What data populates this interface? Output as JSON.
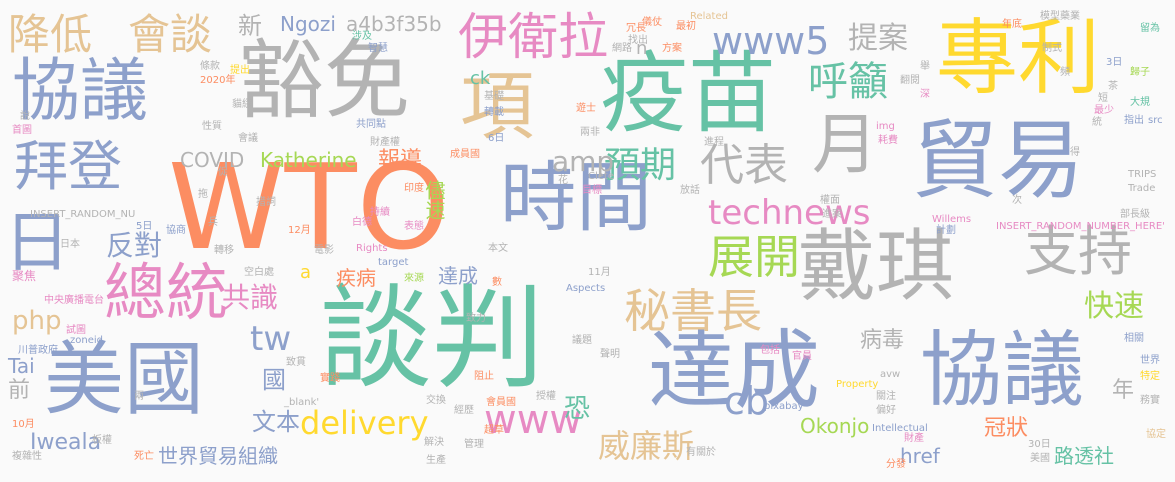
{
  "words": [
    {
      "text": "WTO",
      "color": "#fc8d62"
    },
    {
      "text": "談判",
      "color": "#66c2a5"
    },
    {
      "text": "疫苗",
      "color": "#66c2a5"
    },
    {
      "text": "豁免",
      "color": "#b3b3b3"
    },
    {
      "text": "專利",
      "color": "#ffd92f"
    },
    {
      "text": "貿易",
      "color": "#8da0cb"
    },
    {
      "text": "協議",
      "color": "#8da0cb"
    },
    {
      "text": "協議",
      "color": "#8da0cb"
    },
    {
      "text": "美國",
      "color": "#8da0cb"
    },
    {
      "text": "達成",
      "color": "#8da0cb"
    },
    {
      "text": "戴琪",
      "color": "#b3b3b3"
    },
    {
      "text": "時間",
      "color": "#8da0cb"
    },
    {
      "text": "總統",
      "color": "#e78ac3"
    },
    {
      "text": "拜登",
      "color": "#8da0cb"
    },
    {
      "text": "伊衛拉",
      "color": "#e78ac3"
    },
    {
      "text": "支持",
      "color": "#b3b3b3"
    },
    {
      "text": "月",
      "color": "#b3b3b3"
    },
    {
      "text": "日",
      "color": "#8da0cb"
    },
    {
      "text": "項",
      "color": "#e5c494"
    },
    {
      "text": "秘書長",
      "color": "#e5c494"
    },
    {
      "text": "展開",
      "color": "#a6d854"
    },
    {
      "text": "www5",
      "color": "#8da0cb"
    },
    {
      "text": "technews",
      "color": "#e78ac3"
    },
    {
      "text": "降低",
      "color": "#e5c494"
    },
    {
      "text": "會談",
      "color": "#e5c494"
    },
    {
      "text": "代表",
      "color": "#b3b3b3"
    },
    {
      "text": "預期",
      "color": "#66c2a5"
    },
    {
      "text": "呼籲",
      "color": "#66c2a5"
    },
    {
      "text": "提案",
      "color": "#b3b3b3"
    },
    {
      "text": "amp",
      "color": "#b3b3b3"
    },
    {
      "text": "tw",
      "color": "#8da0cb"
    },
    {
      "text": "www",
      "color": "#e78ac3"
    },
    {
      "text": "delivery",
      "color": "#ffd92f"
    },
    {
      "text": "cb",
      "color": "#8da0cb"
    },
    {
      "text": "威廉斯",
      "color": "#e5c494"
    },
    {
      "text": "快速",
      "color": "#a6d854"
    },
    {
      "text": "病毒",
      "color": "#b3b3b3"
    },
    {
      "text": "反對",
      "color": "#8da0cb"
    },
    {
      "text": "共識",
      "color": "#e78ac3"
    },
    {
      "text": "php",
      "color": "#e5c494"
    },
    {
      "text": "COVID",
      "color": "#b3b3b3"
    },
    {
      "text": "Katherine",
      "color": "#a6d854"
    },
    {
      "text": "Ngozi",
      "color": "#8da0cb"
    },
    {
      "text": "a4b3f35b",
      "color": "#b3b3b3"
    },
    {
      "text": "新",
      "color": "#b3b3b3"
    },
    {
      "text": "報導",
      "color": "#fc8d62"
    },
    {
      "text": "儘速",
      "color": "#a6d854"
    },
    {
      "text": "疾病",
      "color": "#fc8d62"
    },
    {
      "text": "達成",
      "color": "#8da0cb"
    },
    {
      "text": "文本",
      "color": "#8da0cb"
    },
    {
      "text": "恐",
      "color": "#66c2a5"
    },
    {
      "text": "Iweala",
      "color": "#8da0cb"
    },
    {
      "text": "世界貿易組織",
      "color": "#8da0cb"
    },
    {
      "text": "Okonjo",
      "color": "#a6d854"
    },
    {
      "text": "href",
      "color": "#8da0cb"
    },
    {
      "text": "冠狀",
      "color": "#fc8d62"
    },
    {
      "text": "路透社",
      "color": "#66c2a5"
    },
    {
      "text": "年",
      "color": "#b3b3b3"
    },
    {
      "text": "前",
      "color": "#b3b3b3"
    },
    {
      "text": "Tai",
      "color": "#8da0cb"
    },
    {
      "text": "國",
      "color": "#8da0cb"
    },
    {
      "text": "a",
      "color": "#ffd92f"
    },
    {
      "text": "n",
      "color": "#b3b3b3"
    },
    {
      "text": "ck",
      "color": "#66c2a5"
    },
    {
      "text": "條款",
      "color": "#b3b3b3"
    },
    {
      "text": "2020年",
      "color": "#fc8d62"
    },
    {
      "text": "性質",
      "color": "#b3b3b3"
    },
    {
      "text": "INSERT_RANDOM_NU",
      "color": "#b3b3b3"
    },
    {
      "text": "日本",
      "color": "#b3b3b3"
    },
    {
      "text": "聚焦",
      "color": "#e78ac3"
    },
    {
      "text": "中央廣播電台",
      "color": "#e78ac3"
    },
    {
      "text": "試圖",
      "color": "#e78ac3"
    },
    {
      "text": "川普政府",
      "color": "#8da0cb"
    },
    {
      "text": "zoneid",
      "color": "#8da0cb"
    },
    {
      "text": "10月",
      "color": "#fc8d62"
    },
    {
      "text": "複雜性",
      "color": "#b3b3b3"
    },
    {
      "text": "TRIPS",
      "color": "#b3b3b3"
    },
    {
      "text": "Trade",
      "color": "#b3b3b3"
    },
    {
      "text": "INSERT_RANDOM_NUMBER_HERE'",
      "color": "#e78ac3"
    },
    {
      "text": "Willems",
      "color": "#e78ac3"
    },
    {
      "text": "Related",
      "color": "#e5c494"
    },
    {
      "text": "Rights",
      "color": "#e78ac3"
    },
    {
      "text": "target",
      "color": "#8da0cb"
    },
    {
      "text": "Aspects",
      "color": "#8da0cb"
    },
    {
      "text": "Property",
      "color": "#ffd92f"
    },
    {
      "text": "Intellectual",
      "color": "#8da0cb"
    },
    {
      "text": "pixabay",
      "color": "#8da0cb"
    },
    {
      "text": "Clete",
      "color": "#b3b3b3"
    },
    {
      "text": "img",
      "color": "#e78ac3"
    },
    {
      "text": "src",
      "color": "#8da0cb"
    },
    {
      "text": "avw",
      "color": "#b3b3b3"
    },
    {
      "text": "_blank'",
      "color": "#b3b3b3"
    },
    {
      "text": "世界",
      "color": "#8da0cb"
    },
    {
      "text": "特定",
      "color": "#ffd92f"
    },
    {
      "text": "務實",
      "color": "#b3b3b3"
    },
    {
      "text": "協定",
      "color": "#e5c494"
    },
    {
      "text": "財產",
      "color": "#e78ac3"
    },
    {
      "text": "30日",
      "color": "#b3b3b3"
    },
    {
      "text": "美國",
      "color": "#b3b3b3"
    },
    {
      "text": "分發",
      "color": "#fc8d62"
    },
    {
      "text": "留為",
      "color": "#66c2a5"
    },
    {
      "text": "歸子",
      "color": "#a6d854"
    },
    {
      "text": "大規",
      "color": "#66c2a5"
    },
    {
      "text": "指出",
      "color": "#8da0cb"
    },
    {
      "text": "部長級",
      "color": "#b3b3b3"
    },
    {
      "text": "12月",
      "color": "#fc8d62"
    },
    {
      "text": "11月",
      "color": "#b3b3b3"
    },
    {
      "text": "5日",
      "color": "#8da0cb"
    },
    {
      "text": "6日",
      "color": "#8da0cb"
    },
    {
      "text": "3日",
      "color": "#8da0cb"
    },
    {
      "text": "模型藥業",
      "color": "#b3b3b3"
    },
    {
      "text": "首圖",
      "color": "#e78ac3"
    },
    {
      "text": "貓繆",
      "color": "#b3b3b3"
    },
    {
      "text": "財產權",
      "color": "#b3b3b3"
    },
    {
      "text": "成員國",
      "color": "#fc8d62"
    },
    {
      "text": "會員國",
      "color": "#fc8d62"
    },
    {
      "text": "本文",
      "color": "#b3b3b3"
    },
    {
      "text": "電影",
      "color": "#b3b3b3"
    },
    {
      "text": "空白處",
      "color": "#b3b3b3"
    },
    {
      "text": "轉移",
      "color": "#b3b3b3"
    },
    {
      "text": "有關於",
      "color": "#b3b3b3"
    },
    {
      "text": "生產",
      "color": "#b3b3b3"
    },
    {
      "text": "超草",
      "color": "#fc8d62"
    },
    {
      "text": "經歷",
      "color": "#b3b3b3"
    },
    {
      "text": "交換",
      "color": "#b3b3b3"
    },
    {
      "text": "解決",
      "color": "#b3b3b3"
    },
    {
      "text": "阻止",
      "color": "#fc8d62"
    },
    {
      "text": "授權",
      "color": "#b3b3b3"
    },
    {
      "text": "包括",
      "color": "#e78ac3"
    },
    {
      "text": "官員",
      "color": "#e78ac3"
    },
    {
      "text": "議題",
      "color": "#b3b3b3"
    },
    {
      "text": "聲明",
      "color": "#b3b3b3"
    },
    {
      "text": "致力",
      "color": "#b3b3b3"
    },
    {
      "text": "相關",
      "color": "#8da0cb"
    },
    {
      "text": "偏好",
      "color": "#b3b3b3"
    },
    {
      "text": "關注",
      "color": "#b3b3b3"
    },
    {
      "text": "次",
      "color": "#b3b3b3"
    },
    {
      "text": "計劃",
      "color": "#8da0cb"
    },
    {
      "text": "進案",
      "color": "#b3b3b3"
    },
    {
      "text": "權面",
      "color": "#b3b3b3"
    },
    {
      "text": "耗費",
      "color": "#e78ac3"
    },
    {
      "text": "網路",
      "color": "#b3b3b3"
    },
    {
      "text": "進程",
      "color": "#b3b3b3"
    },
    {
      "text": "放話",
      "color": "#b3b3b3"
    },
    {
      "text": "目標",
      "color": "#e78ac3"
    },
    {
      "text": "來源",
      "color": "#a6d854"
    },
    {
      "text": "數",
      "color": "#fc8d62"
    },
    {
      "text": "兩非",
      "color": "#b3b3b3"
    },
    {
      "text": "共同點",
      "color": "#8da0cb"
    },
    {
      "text": "轉載",
      "color": "#8da0cb"
    },
    {
      "text": "基礎",
      "color": "#b3b3b3"
    },
    {
      "text": "智慧",
      "color": "#8da0cb"
    },
    {
      "text": "涉及",
      "color": "#66c2a5"
    },
    {
      "text": "最初",
      "color": "#fc8d62"
    },
    {
      "text": "方案",
      "color": "#fc8d62"
    },
    {
      "text": "儀仗",
      "color": "#fc8d62"
    },
    {
      "text": "年底",
      "color": "#fc8d62"
    },
    {
      "text": "制式",
      "color": "#b3b3b3"
    },
    {
      "text": "翻閱",
      "color": "#b3b3b3"
    },
    {
      "text": "統",
      "color": "#b3b3b3"
    },
    {
      "text": "短",
      "color": "#b3b3b3"
    },
    {
      "text": "最少",
      "color": "#e78ac3"
    },
    {
      "text": "提出",
      "color": "#ffd92f"
    },
    {
      "text": "會議",
      "color": "#b3b3b3"
    },
    {
      "text": "拖",
      "color": "#b3b3b3"
    },
    {
      "text": "措詞",
      "color": "#b3b3b3"
    },
    {
      "text": "協商",
      "color": "#8da0cb"
    },
    {
      "text": "印度",
      "color": "#fc8d62"
    },
    {
      "text": "持續",
      "color": "#e78ac3"
    },
    {
      "text": "白德",
      "color": "#e78ac3"
    },
    {
      "text": "表態",
      "color": "#e78ac3"
    },
    {
      "text": "實踐",
      "color": "#fc8d62"
    },
    {
      "text": "說",
      "color": "#b3b3b3"
    },
    {
      "text": "兩",
      "color": "#b3b3b3"
    },
    {
      "text": "板權",
      "color": "#b3b3b3"
    },
    {
      "text": "死亡",
      "color": "#fc8d62"
    },
    {
      "text": "致貫",
      "color": "#b3b3b3"
    },
    {
      "text": "兵",
      "color": "#b3b3b3"
    },
    {
      "text": "冗長",
      "color": "#fc8d62"
    },
    {
      "text": "找出",
      "color": "#b3b3b3"
    },
    {
      "text": "管理",
      "color": "#b3b3b3"
    },
    {
      "text": "遊士",
      "color": "#fc8d62"
    },
    {
      "text": "花",
      "color": "#b3b3b3"
    },
    {
      "text": "茶",
      "color": "#b3b3b3"
    },
    {
      "text": "促",
      "color": "#b3b3b3"
    },
    {
      "text": "頻",
      "color": "#b3b3b3"
    },
    {
      "text": "舉",
      "color": "#b3b3b3"
    },
    {
      "text": "深",
      "color": "#e78ac3"
    },
    {
      "text": "得",
      "color": "#b3b3b3"
    }
  ]
}
